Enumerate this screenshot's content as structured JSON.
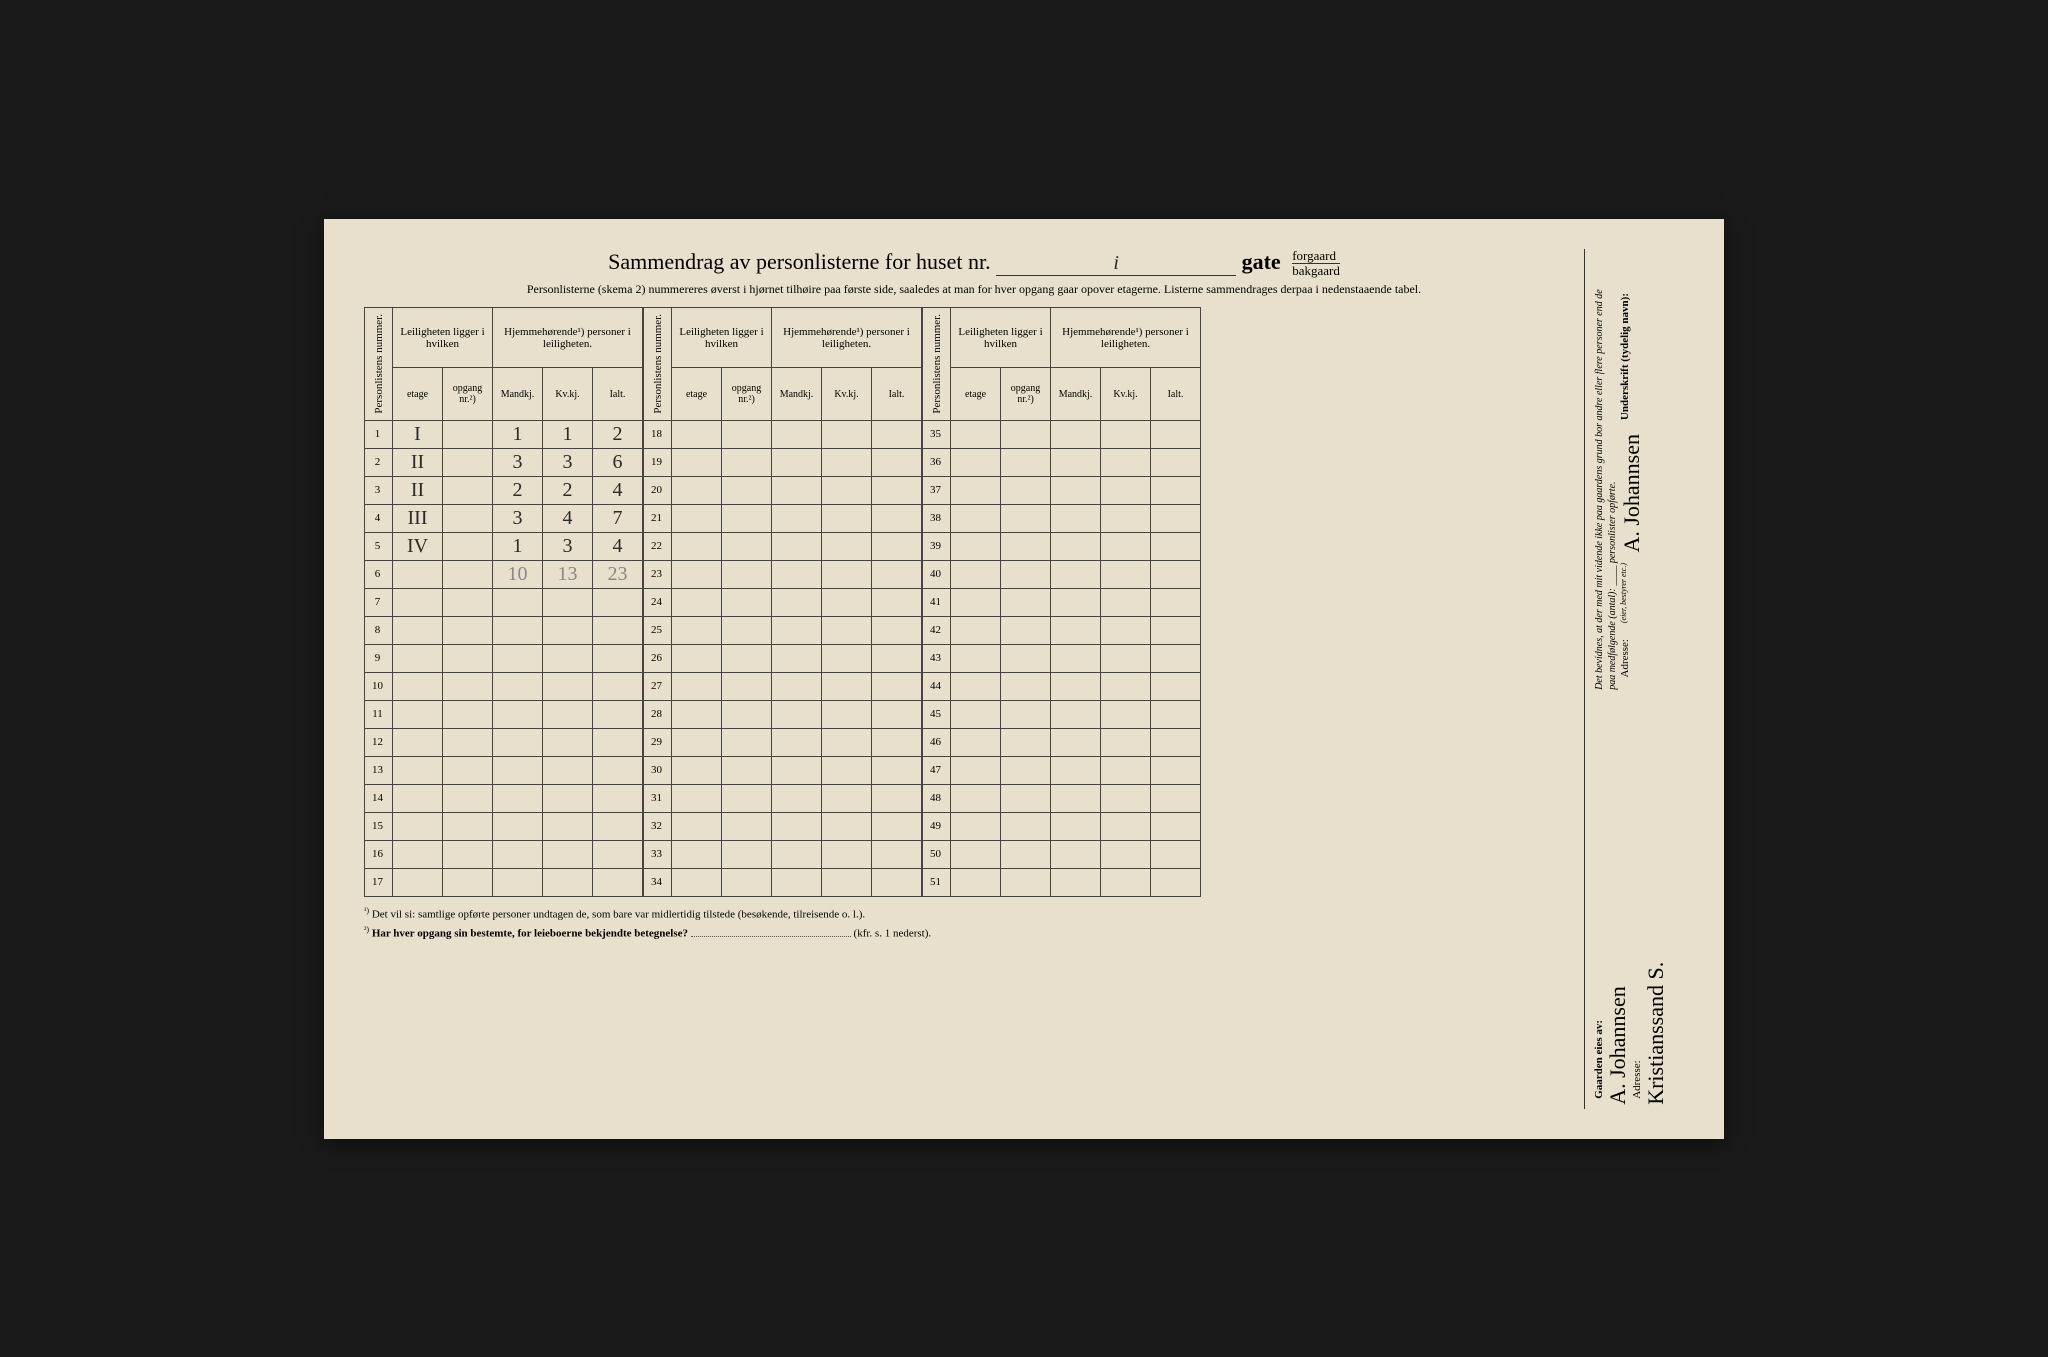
{
  "title": {
    "prefix": "Sammendrag av personlisterne for huset nr.",
    "nr_value": "i",
    "gate_label": "gate",
    "opt_top": "forgaard",
    "opt_bottom": "bakgaard"
  },
  "subtitle": "Personlisterne (skema 2) nummereres øverst i hjørnet tilhøire paa første side, saaledes at man for hver opgang gaar opover etagerne. Listerne sammendrages derpaa i nedenstaaende tabel.",
  "headers": {
    "personlistens": "Personlistens nummer.",
    "leiligheten": "Leiligheten ligger i hvilken",
    "hjemme": "Hjemmehørende¹) personer i leiligheten.",
    "etage": "etage",
    "opgang": "opgang nr.²)",
    "mandkj": "Mandkj.",
    "kvkj": "Kv.kj.",
    "ialt": "Ialt."
  },
  "rows_a": [
    {
      "n": "1",
      "etage": "I",
      "mand": "1",
      "kv": "1",
      "ialt": "2"
    },
    {
      "n": "2",
      "etage": "II",
      "mand": "3",
      "kv": "3",
      "ialt": "6"
    },
    {
      "n": "3",
      "etage": "II",
      "mand": "2",
      "kv": "2",
      "ialt": "4"
    },
    {
      "n": "4",
      "etage": "III",
      "mand": "3",
      "kv": "4",
      "ialt": "7"
    },
    {
      "n": "5",
      "etage": "IV",
      "mand": "1",
      "kv": "3",
      "ialt": "4"
    },
    {
      "n": "6",
      "etage": "",
      "mand": "10",
      "kv": "13",
      "ialt": "23",
      "light": true
    },
    {
      "n": "7"
    },
    {
      "n": "8"
    },
    {
      "n": "9"
    },
    {
      "n": "10"
    },
    {
      "n": "11"
    },
    {
      "n": "12"
    },
    {
      "n": "13"
    },
    {
      "n": "14"
    },
    {
      "n": "15"
    },
    {
      "n": "16"
    },
    {
      "n": "17"
    }
  ],
  "rows_b": [
    "18",
    "19",
    "20",
    "21",
    "22",
    "23",
    "24",
    "25",
    "26",
    "27",
    "28",
    "29",
    "30",
    "31",
    "32",
    "33",
    "34"
  ],
  "rows_c": [
    "35",
    "36",
    "37",
    "38",
    "39",
    "40",
    "41",
    "42",
    "43",
    "44",
    "45",
    "46",
    "47",
    "48",
    "49",
    "50",
    "51"
  ],
  "footnotes": {
    "f1_sup": "¹)",
    "f1": "Det vil si: samtlige opførte personer undtagen de, som bare var midlertidig tilstede (besøkende, tilreisende o. l.).",
    "f2_sup": "²)",
    "f2_bold": "Har hver opgang sin bestemte, for leieboerne bekjendte betegnelse?",
    "f2_tail": "(kfr. s. 1 nederst)."
  },
  "side": {
    "gaarden": "Gaarden eies av:",
    "sig1": "A. Johannsen",
    "adresse_label": "Adresse:",
    "sig2": "Kristianssand S.",
    "bevidnes": "Det bevidnes, at der med mit vidende ikke paa gaardens grund bor andre eller flere personer end de paa medfølgende (antal): ____ personlister opførte.",
    "underskrift": "Underskrift (tydelig navn):",
    "sig3": "A. Johannsen",
    "eier_note": "(eier, bestyrer etc.)",
    "adresse2": "Adresse:"
  }
}
